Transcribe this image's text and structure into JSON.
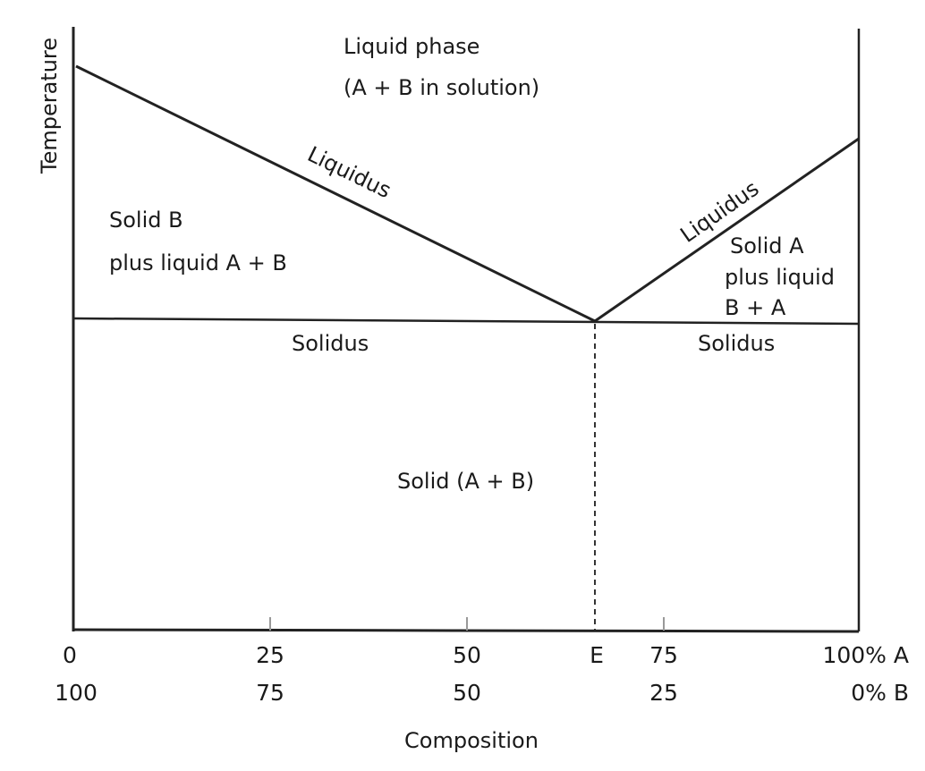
{
  "diagram": {
    "ylabel": "Temperature",
    "xlabel": "Composition",
    "regions": {
      "liquid_line1": "Liquid phase",
      "liquid_line2": "(A + B in solution)",
      "solid_b_line1": "Solid B",
      "solid_b_line2": "plus liquid A + B",
      "solid_a_line1": "Solid A",
      "solid_a_line2": "plus liquid",
      "solid_a_line3": "B + A",
      "solid_ab": "Solid (A + B)"
    },
    "curves": {
      "liquidus_left": "Liquidus",
      "liquidus_right": "Liquidus",
      "solidus_left": "Solidus",
      "solidus_right": "Solidus"
    },
    "x_ticks_top": [
      "0",
      "25",
      "50",
      "E",
      "75",
      "100% A"
    ],
    "x_ticks_bottom": [
      "100",
      "75",
      "50",
      "25",
      "0% B"
    ]
  }
}
